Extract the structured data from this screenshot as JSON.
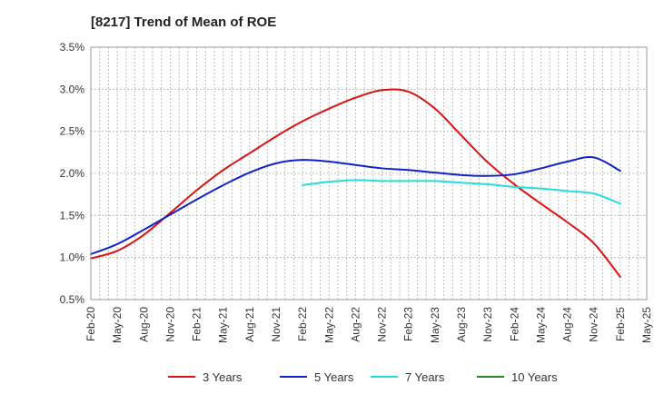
{
  "chart_data": {
    "type": "line",
    "title": "[8217]  Trend of Mean of ROE",
    "xlabel": "",
    "ylabel": "",
    "x_tick_labels": [
      "Feb-20",
      "May-20",
      "Aug-20",
      "Nov-20",
      "Feb-21",
      "May-21",
      "Aug-21",
      "Nov-21",
      "Feb-22",
      "May-22",
      "Aug-22",
      "Nov-22",
      "Feb-23",
      "May-23",
      "Aug-23",
      "Nov-23",
      "Feb-24",
      "May-24",
      "Aug-24",
      "Nov-24",
      "Feb-25",
      "May-25"
    ],
    "y_tick_labels": [
      "0.5%",
      "1.0%",
      "1.5%",
      "2.0%",
      "2.5%",
      "3.0%",
      "3.5%"
    ],
    "ylim": [
      0.5,
      3.5
    ],
    "y_ticks": [
      0.5,
      1.0,
      1.5,
      2.0,
      2.5,
      3.0,
      3.5
    ],
    "grid": true,
    "legend_position": "bottom",
    "series": [
      {
        "name": "3 Years",
        "color": "#dd1111",
        "x": [
          "Feb-20",
          "May-20",
          "Aug-20",
          "Nov-20",
          "Feb-21",
          "May-21",
          "Aug-21",
          "Nov-21",
          "Feb-22",
          "May-22",
          "Aug-22",
          "Nov-22",
          "Feb-23",
          "May-23",
          "Aug-23",
          "Nov-23",
          "Feb-24",
          "May-24",
          "Aug-24",
          "Nov-24",
          "Feb-25"
        ],
        "values": [
          0.99,
          1.08,
          1.27,
          1.53,
          1.8,
          2.04,
          2.24,
          2.44,
          2.62,
          2.77,
          2.9,
          2.99,
          2.97,
          2.77,
          2.45,
          2.13,
          1.87,
          1.64,
          1.42,
          1.17,
          0.77
        ]
      },
      {
        "name": "5 Years",
        "color": "#1122cc",
        "x": [
          "Feb-20",
          "May-20",
          "Aug-20",
          "Nov-20",
          "Feb-21",
          "May-21",
          "Aug-21",
          "Nov-21",
          "Feb-22",
          "May-22",
          "Aug-22",
          "Nov-22",
          "Feb-23",
          "May-23",
          "Aug-23",
          "Nov-23",
          "Feb-24",
          "May-24",
          "Aug-24",
          "Nov-24",
          "Feb-25"
        ],
        "values": [
          1.04,
          1.16,
          1.33,
          1.51,
          1.69,
          1.86,
          2.01,
          2.12,
          2.16,
          2.14,
          2.1,
          2.06,
          2.04,
          2.01,
          1.98,
          1.97,
          1.99,
          2.06,
          2.14,
          2.19,
          2.03
        ]
      },
      {
        "name": "7 Years",
        "color": "#22dddd",
        "x": [
          "Feb-22",
          "May-22",
          "Aug-22",
          "Nov-22",
          "Feb-23",
          "May-23",
          "Aug-23",
          "Nov-23",
          "Feb-24",
          "May-24",
          "Aug-24",
          "Nov-24",
          "Feb-25"
        ],
        "values": [
          1.86,
          1.9,
          1.92,
          1.91,
          1.91,
          1.91,
          1.89,
          1.87,
          1.84,
          1.82,
          1.79,
          1.76,
          1.64
        ]
      },
      {
        "name": "10 Years",
        "color": "#228822",
        "x": [],
        "values": []
      }
    ]
  }
}
